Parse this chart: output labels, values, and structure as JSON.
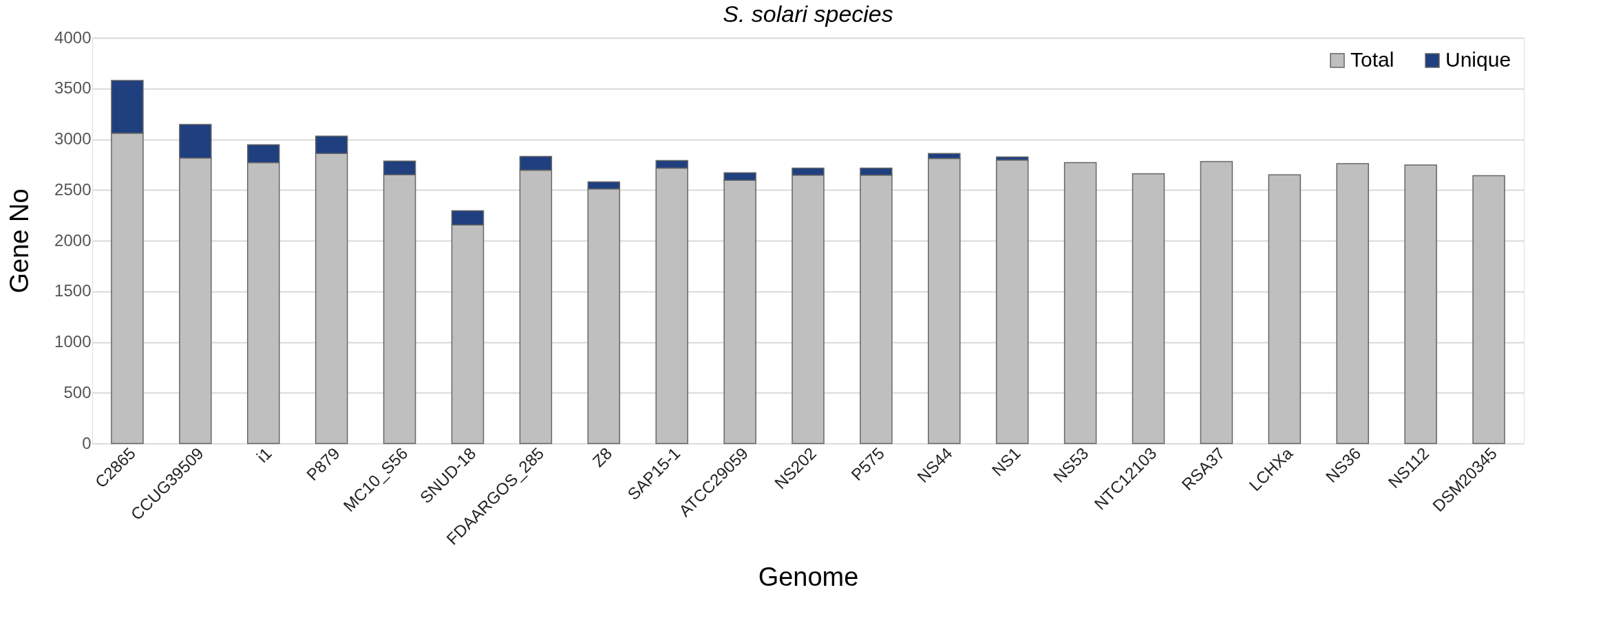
{
  "chart_data": {
    "type": "bar",
    "stacked": true,
    "title": "S. solari species",
    "xlabel": "Genome",
    "ylabel": "Gene No",
    "categories": [
      "C2865",
      "CCUG39509",
      "i1",
      "P879",
      "MC10_S56",
      "SNUD-18",
      "FDAARGOS_285",
      "Z8",
      "SAP15-1",
      "ATCC29059",
      "NS202",
      "P575",
      "NS44",
      "NS1",
      "NS53",
      "NTC12103",
      "RSA37",
      "LCHXa",
      "NS36",
      "NS112",
      "DSM20345"
    ],
    "series": [
      {
        "name": "Total",
        "color": "#bfbfbf",
        "values": [
          3060,
          2815,
          2770,
          2860,
          2650,
          2155,
          2695,
          2510,
          2715,
          2595,
          2645,
          2645,
          2810,
          2795,
          2770,
          2660,
          2780,
          2650,
          2760,
          2745,
          2640
        ]
      },
      {
        "name": "Unique",
        "color": "#1f3f7f",
        "values": [
          520,
          330,
          175,
          170,
          135,
          140,
          135,
          70,
          75,
          75,
          70,
          70,
          50,
          30,
          null,
          null,
          null,
          null,
          null,
          null,
          null
        ]
      }
    ],
    "ylim": [
      0,
      4000
    ],
    "yticks": [
      0,
      500,
      1000,
      1500,
      2000,
      2500,
      3000,
      3500,
      4000
    ],
    "grid": "y",
    "legend": "top right"
  }
}
